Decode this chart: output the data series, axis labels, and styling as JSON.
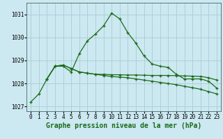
{
  "title": "Graphe pression niveau de la mer (hPa)",
  "background_color": "#cce8f0",
  "grid_color": "#aaccd8",
  "line_color": "#1a6b1a",
  "xlim": [
    -0.5,
    23.5
  ],
  "ylim": [
    1026.8,
    1031.5
  ],
  "yticks": [
    1027,
    1028,
    1029,
    1030,
    1031
  ],
  "xticks": [
    0,
    1,
    2,
    3,
    4,
    5,
    6,
    7,
    8,
    9,
    10,
    11,
    12,
    13,
    14,
    15,
    16,
    17,
    18,
    19,
    20,
    21,
    22,
    23
  ],
  "series1_x": [
    0,
    1,
    2,
    3,
    4,
    5,
    6,
    7,
    8,
    9,
    10,
    11,
    12,
    13,
    14,
    15,
    16,
    17,
    18,
    19,
    20,
    21,
    22,
    23
  ],
  "series1_y": [
    1027.2,
    1027.55,
    1028.2,
    1028.75,
    1028.75,
    1028.5,
    1029.3,
    1029.85,
    1030.15,
    1030.5,
    1031.05,
    1030.8,
    1030.2,
    1029.75,
    1029.2,
    1028.85,
    1028.75,
    1028.7,
    1028.4,
    1028.2,
    1028.2,
    1028.2,
    1028.1,
    1027.8
  ],
  "series2_x": [
    2,
    3,
    4,
    5,
    6,
    7,
    8,
    9,
    10,
    11,
    12,
    13,
    14,
    15,
    16,
    17,
    18,
    19,
    20,
    21,
    22,
    23
  ],
  "series2_y": [
    1028.2,
    1028.75,
    1028.8,
    1028.65,
    1028.5,
    1028.45,
    1028.4,
    1028.4,
    1028.38,
    1028.38,
    1028.37,
    1028.37,
    1028.36,
    1028.35,
    1028.35,
    1028.35,
    1028.34,
    1028.33,
    1028.32,
    1028.31,
    1028.25,
    1028.15
  ],
  "series3_x": [
    2,
    3,
    4,
    5,
    6,
    7,
    8,
    9,
    10,
    11,
    12,
    13,
    14,
    15,
    16,
    17,
    18,
    19,
    20,
    21,
    22,
    23
  ],
  "series3_y": [
    1028.2,
    1028.75,
    1028.8,
    1028.65,
    1028.5,
    1028.45,
    1028.4,
    1028.35,
    1028.3,
    1028.28,
    1028.25,
    1028.2,
    1028.15,
    1028.1,
    1028.05,
    1028.0,
    1027.95,
    1027.88,
    1027.82,
    1027.75,
    1027.65,
    1027.55
  ],
  "title_fontsize": 7,
  "tick_fontsize": 5.5
}
